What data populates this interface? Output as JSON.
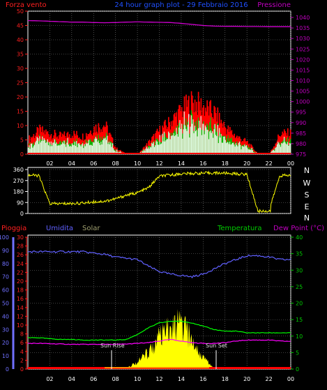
{
  "header": {
    "left_label": "Forza vento",
    "center_title": "24 hour graph plot - 29 Febbraio 2016",
    "right_label": "Pressione"
  },
  "compass": [
    "N",
    "W",
    "S",
    "E",
    "N"
  ],
  "lower_labels": {
    "rain": "Pioggia",
    "humidity": "Umidita",
    "solar": "Solar",
    "temperature": "Temperatura",
    "dewpoint": "Dew Point (°C)"
  },
  "annotations": {
    "sunrise": "Sun Rise",
    "sunset": "Sun Set",
    "suntrise_tick": "Sun Rise",
    "sunset_tick": "Sun Set"
  },
  "colors": {
    "wind_gust": "#ff0000",
    "wind_avg": "#00c000",
    "wind_speed": "#ffffff",
    "pressure": "#d000d0",
    "direction": "#ffff00",
    "humidity": "#6060ff",
    "temperature": "#00ff00",
    "dewpoint": "#ff00ff",
    "solar": "#ffff00",
    "rain": "#ff0000",
    "axis_red": "#ff2020",
    "axis_magenta": "#c000c0",
    "axis_blue": "#7070ff",
    "axis_green": "#00cc00",
    "grid": "#808080"
  },
  "chart_data": [
    {
      "type": "area",
      "title": "24 hour graph plot - 29 Febbraio 2016",
      "x": [
        "02",
        "04",
        "06",
        "08",
        "10",
        "12",
        "14",
        "16",
        "18",
        "20",
        "22",
        "00"
      ],
      "y_left_ticks": [
        "0",
        "5",
        "10",
        "15",
        "20",
        "25",
        "30",
        "35",
        "40",
        "45",
        "50"
      ],
      "y_left_range": [
        0,
        50
      ],
      "y_right_ticks": [
        "975",
        "980",
        "985",
        "990",
        "995",
        "1000",
        "1005",
        "1010",
        "1015",
        "1020",
        "1025",
        "1030",
        "1035",
        "1040"
      ],
      "y_right_range": [
        975,
        1043
      ],
      "series": [
        {
          "name": "Forza vento",
          "gust_hourly": [
            5,
            8,
            7,
            6,
            7,
            6,
            9,
            10,
            2,
            0,
            0,
            4,
            8,
            11,
            15,
            18,
            16,
            14,
            9,
            6,
            4,
            0,
            0,
            7,
            7
          ]
        },
        {
          "name": "Pressione",
          "hourly": [
            1038.5,
            1038.4,
            1038.2,
            1038.0,
            1037.8,
            1037.8,
            1037.6,
            1037.5,
            1037.6,
            1037.8,
            1037.9,
            1037.8,
            1037.7,
            1037.6,
            1037.2,
            1036.7,
            1036.2,
            1035.9,
            1035.8,
            1035.8,
            1035.7,
            1035.7,
            1035.6,
            1035.6,
            1035.6
          ]
        }
      ]
    },
    {
      "type": "line",
      "y_ticks": [
        "0",
        "90",
        "180",
        "270",
        "360"
      ],
      "y_range": [
        0,
        360
      ],
      "series": [
        {
          "name": "wind direction",
          "hourly": [
            315,
            310,
            80,
            80,
            82,
            85,
            95,
            100,
            120,
            150,
            170,
            210,
            305,
            315,
            325,
            328,
            330,
            332,
            330,
            325,
            320,
            20,
            20,
            310,
            312
          ]
        }
      ]
    },
    {
      "type": "line",
      "y_rain_ticks": [
        "0",
        "2",
        "4",
        "6",
        "8",
        "10",
        "12",
        "14",
        "16",
        "18",
        "20",
        "22",
        "24",
        "26",
        "28",
        "30"
      ],
      "y_humidity_ticks": [
        "0",
        "10",
        "20",
        "30",
        "40",
        "50",
        "60",
        "70",
        "80",
        "90",
        "100"
      ],
      "y_temp_ticks": [
        "0",
        "5",
        "10",
        "15",
        "20",
        "25",
        "30",
        "35",
        "40"
      ],
      "y_temp_range": [
        0,
        40
      ],
      "series": [
        {
          "name": "Umidita",
          "hourly": [
            89,
            89,
            89,
            89,
            89,
            89,
            88,
            87,
            85,
            84,
            83,
            78,
            74,
            72,
            71,
            70,
            72,
            76,
            80,
            83,
            86,
            86,
            85,
            83,
            83
          ]
        },
        {
          "name": "Temperatura",
          "hourly": [
            9.5,
            9.5,
            9.2,
            9.0,
            9.0,
            8.8,
            8.8,
            8.8,
            8.8,
            9.0,
            10.5,
            12.5,
            14.0,
            14.5,
            14.5,
            14.0,
            13.0,
            12.0,
            11.5,
            11.5,
            11.0,
            11.0,
            11.0,
            11.0,
            11.0
          ]
        },
        {
          "name": "Dew Point (°C)",
          "hourly": [
            7.8,
            7.8,
            7.7,
            7.6,
            7.5,
            7.5,
            7.5,
            7.5,
            7.5,
            7.6,
            7.8,
            8.0,
            8.5,
            9.0,
            8.5,
            8.0,
            7.8,
            7.8,
            8.0,
            8.5,
            8.8,
            8.8,
            8.8,
            8.5,
            8.4
          ]
        },
        {
          "name": "Solar",
          "hourly": [
            0,
            0,
            0,
            0,
            0,
            0,
            0,
            0,
            0,
            0.5,
            2.5,
            6,
            11,
            14,
            16,
            10,
            4,
            0.5,
            0,
            0,
            0,
            0,
            0,
            0,
            0
          ]
        }
      ]
    }
  ]
}
